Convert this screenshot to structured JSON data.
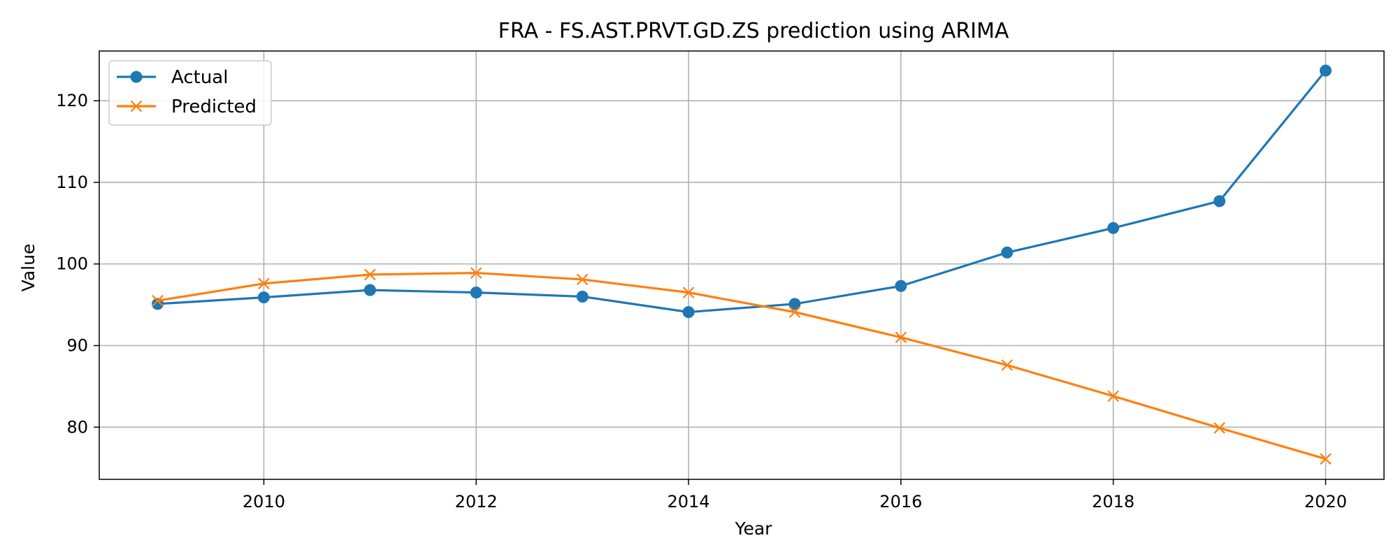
{
  "chart_data": {
    "type": "line",
    "title": "FRA - FS.AST.PRVT.GD.ZS prediction using ARIMA",
    "xlabel": "Year",
    "ylabel": "Value",
    "x": [
      2009,
      2010,
      2011,
      2012,
      2013,
      2014,
      2015,
      2016,
      2017,
      2018,
      2019,
      2020
    ],
    "xlim": [
      2008.45,
      2020.55
    ],
    "ylim": [
      73.6,
      126.1
    ],
    "xticks": [
      2010,
      2012,
      2014,
      2016,
      2018,
      2020
    ],
    "yticks": [
      80,
      90,
      100,
      110,
      120
    ],
    "grid": true,
    "legend_position": "top-left",
    "series": [
      {
        "name": "Actual",
        "color": "#1f77b4",
        "marker": "circle",
        "values": [
          95.1,
          95.9,
          96.8,
          96.5,
          96.0,
          94.1,
          95.1,
          97.3,
          101.4,
          104.4,
          107.7,
          123.7
        ]
      },
      {
        "name": "Predicted",
        "color": "#ff7f0e",
        "marker": "x",
        "values": [
          95.5,
          97.6,
          98.7,
          98.9,
          98.1,
          96.5,
          94.1,
          91.0,
          87.6,
          83.8,
          79.9,
          76.1
        ]
      }
    ]
  }
}
